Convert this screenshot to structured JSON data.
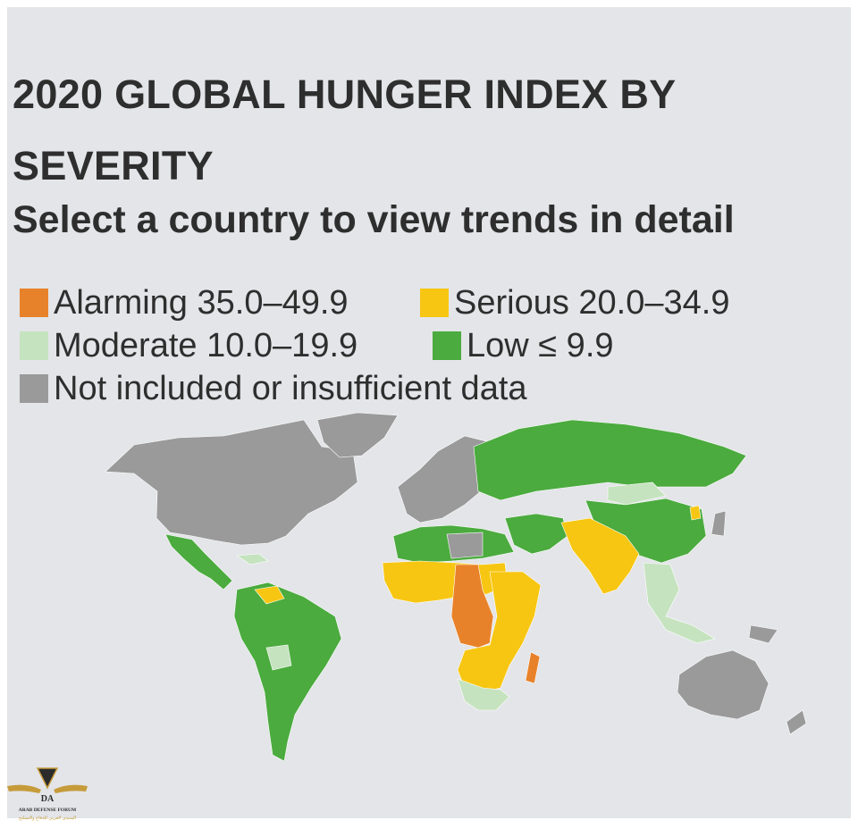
{
  "title": "2020 GLOBAL HUNGER INDEX BY SEVERITY",
  "subtitle": "Select a country to view trends in detail",
  "legend": [
    {
      "label": "Alarming 35.0–49.9",
      "color": "#e8822a"
    },
    {
      "label": "Serious 20.0–34.9",
      "color": "#f7c612"
    },
    {
      "label": "Moderate 10.0–19.9",
      "color": "#c6e3c0"
    },
    {
      "label": "Low ≤ 9.9",
      "color": "#4bab3e"
    },
    {
      "label": "Not included or insufficient data",
      "color": "#9a9a9a"
    }
  ],
  "colors": {
    "background": "#e3e5e8",
    "text": "#2e2e2e",
    "alarming": "#e8822a",
    "serious": "#f7c612",
    "moderate": "#c6e3c0",
    "low": "#4bab3e",
    "no_data": "#9a9a9a"
  },
  "watermark": {
    "logo_text": "DA",
    "name": "ARAB DEFENSE FORUM",
    "name_ar": "المنتدى العربي للدفاع والتسليح"
  }
}
